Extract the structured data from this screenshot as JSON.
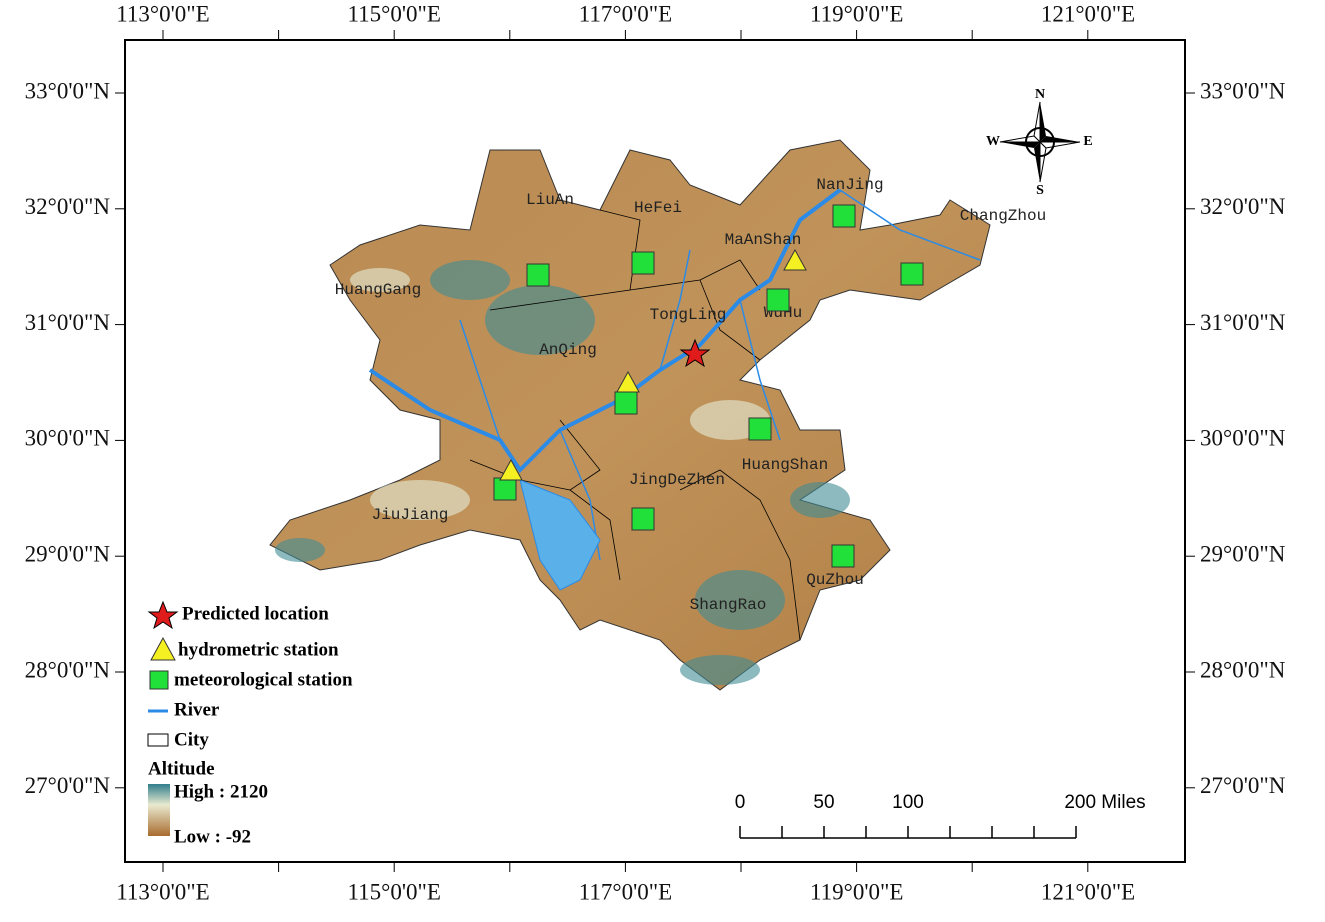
{
  "axes": {
    "top": [
      "113°0'0\"E",
      "115°0'0\"E",
      "117°0'0\"E",
      "119°0'0\"E",
      "121°0'0\"E"
    ],
    "bottom": [
      "113°0'0\"E",
      "115°0'0\"E",
      "117°0'0\"E",
      "119°0'0\"E",
      "121°0'0\"E"
    ],
    "left": [
      "33°0'0\"N",
      "32°0'0\"N",
      "31°0'0\"N",
      "30°0'0\"N",
      "29°0'0\"N",
      "28°0'0\"N",
      "27°0'0\"N"
    ],
    "right": [
      "33°0'0\"N",
      "32°0'0\"N",
      "31°0'0\"N",
      "30°0'0\"N",
      "29°0'0\"N",
      "28°0'0\"N",
      "27°0'0\"N"
    ]
  },
  "compass": {
    "n": "N",
    "s": "S",
    "e": "E",
    "w": "W"
  },
  "cities": [
    "LiuAn",
    "HeFei",
    "NanJing",
    "ChangZhou",
    "MaAnShan",
    "HuangGang",
    "TongLing",
    "WuHu",
    "AnQing",
    "HuangShan",
    "JingDeZhen",
    "JiuJiang",
    "QuZhou",
    "ShangRao"
  ],
  "legend": {
    "predicted": "Predicted location",
    "hydrometric": "hydrometric station",
    "meteorological": "meteorological station",
    "river": "River",
    "city": "City",
    "altitude": "Altitude",
    "high": "High : 2120",
    "low": "Low : -92"
  },
  "scale_bar": {
    "labels": [
      "0",
      "50",
      "100",
      "200 Miles"
    ]
  }
}
